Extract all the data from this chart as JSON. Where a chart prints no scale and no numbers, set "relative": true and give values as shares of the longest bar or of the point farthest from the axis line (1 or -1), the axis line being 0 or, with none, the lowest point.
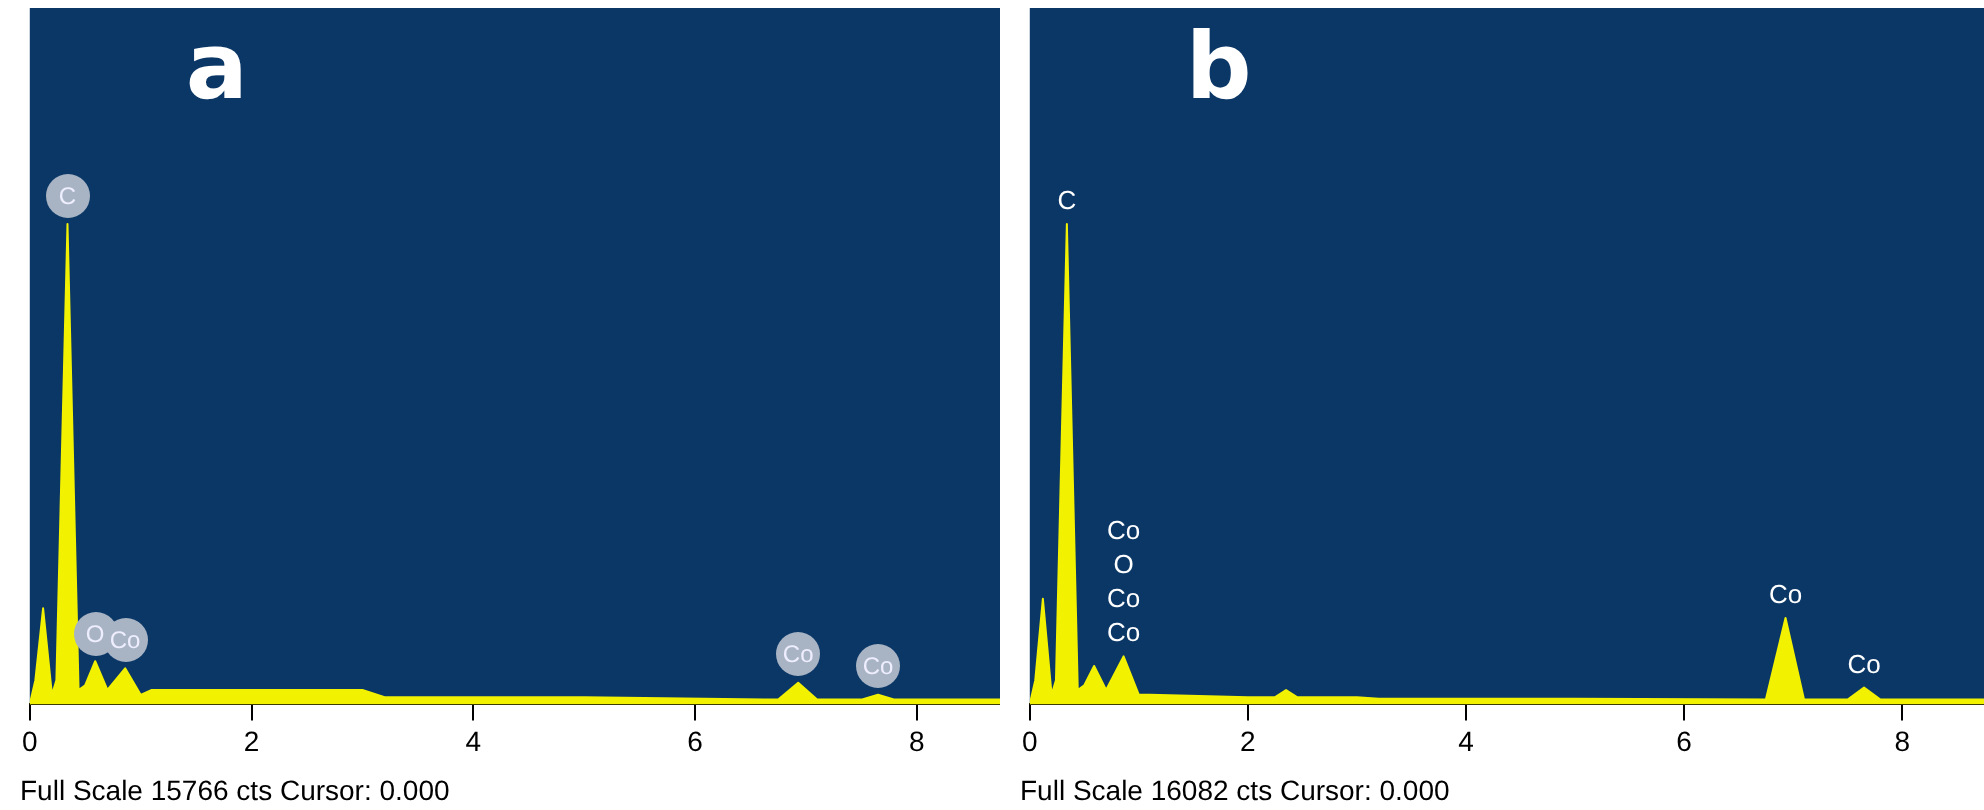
{
  "chart_data": [
    {
      "type": "area",
      "title": "a",
      "relative": true,
      "color": "#f2f200",
      "x": [
        0,
        0.05,
        0.12,
        0.2,
        0.24,
        0.34,
        0.44,
        0.5,
        0.59,
        0.7,
        0.86,
        1.0,
        1.1,
        2,
        3,
        3.2,
        5,
        6.75,
        6.93,
        7.1,
        7.5,
        7.65,
        7.8,
        8.75
      ],
      "values": [
        0,
        0.05,
        0.2,
        0.02,
        0.05,
        1,
        0.03,
        0.04,
        0.09,
        0.03,
        0.075,
        0.02,
        0.03,
        0.03,
        0.03,
        0.015,
        0.015,
        0.01,
        0.045,
        0.01,
        0.01,
        0.02,
        0.01,
        0.01
      ],
      "xlim": [
        0,
        8.75
      ],
      "xticks": [
        0,
        2,
        4,
        6,
        8
      ],
      "grid": false,
      "legend": false,
      "annotations": [
        "Full Scale 15766 cts Cursor: 0.000",
        {
          "text": "C",
          "x": 0.34,
          "y": 1
        },
        {
          "text": "O",
          "x": 0.59,
          "y": 0.09
        },
        {
          "text": "Co",
          "x": 0.86,
          "y": 0.075
        },
        {
          "text": "Co",
          "x": 6.93,
          "y": 0.045
        },
        {
          "text": "Co",
          "x": 7.65,
          "y": 0.02
        }
      ]
    },
    {
      "type": "area",
      "title": "b",
      "relative": true,
      "color": "#f2f200",
      "x": [
        0,
        0.05,
        0.12,
        0.2,
        0.24,
        0.34,
        0.44,
        0.5,
        0.59,
        0.7,
        0.86,
        1.0,
        1.1,
        2,
        2.25,
        2.35,
        2.45,
        3,
        3.2,
        5,
        6.75,
        6.93,
        7.1,
        7.5,
        7.65,
        7.8,
        8.75
      ],
      "values": [
        0,
        0.05,
        0.22,
        0.02,
        0.05,
        1,
        0.03,
        0.04,
        0.08,
        0.03,
        0.1,
        0.02,
        0.02,
        0.015,
        0.015,
        0.03,
        0.015,
        0.015,
        0.012,
        0.012,
        0.01,
        0.18,
        0.01,
        0.01,
        0.035,
        0.01,
        0.01
      ],
      "xlim": [
        0,
        8.75
      ],
      "xticks": [
        0,
        2,
        4,
        6,
        8
      ],
      "grid": false,
      "legend": false,
      "annotations": [
        "Full Scale 16082 cts Cursor: 0.000",
        {
          "text": "C",
          "x": 0.34,
          "y": 1
        },
        {
          "text": "Co",
          "x": 0.86,
          "y": 0.1
        },
        {
          "text": "Co",
          "x": 0.86,
          "y": 0.1
        },
        "O",
        "Co",
        {
          "text": "Co",
          "x": 6.93,
          "y": 0.18
        },
        {
          "text": "Co",
          "x": 7.65,
          "y": 0.035
        }
      ]
    }
  ]
}
